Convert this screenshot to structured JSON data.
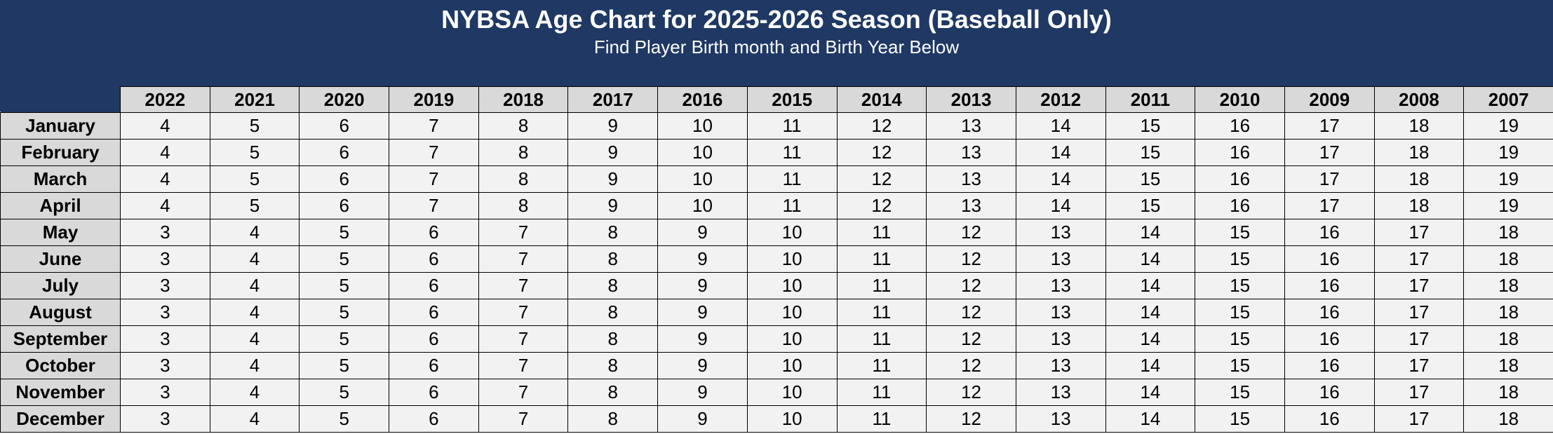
{
  "header": {
    "title": "NYBSA Age Chart for 2025-2026 Season (Baseball Only)",
    "subtitle": "Find Player Birth month and Birth Year Below"
  },
  "colors": {
    "banner": "#1f3864",
    "header_cells": "#d9d9d9",
    "data_cells": "#f2f2f2",
    "text_light": "#ffffff",
    "text_dark": "#000000"
  },
  "table": {
    "years": [
      "2022",
      "2021",
      "2020",
      "2019",
      "2018",
      "2017",
      "2016",
      "2015",
      "2014",
      "2013",
      "2012",
      "2011",
      "2010",
      "2009",
      "2008",
      "2007"
    ],
    "rows": [
      {
        "month": "January",
        "ages": [
          "4",
          "5",
          "6",
          "7",
          "8",
          "9",
          "10",
          "11",
          "12",
          "13",
          "14",
          "15",
          "16",
          "17",
          "18",
          "19"
        ]
      },
      {
        "month": "February",
        "ages": [
          "4",
          "5",
          "6",
          "7",
          "8",
          "9",
          "10",
          "11",
          "12",
          "13",
          "14",
          "15",
          "16",
          "17",
          "18",
          "19"
        ]
      },
      {
        "month": "March",
        "ages": [
          "4",
          "5",
          "6",
          "7",
          "8",
          "9",
          "10",
          "11",
          "12",
          "13",
          "14",
          "15",
          "16",
          "17",
          "18",
          "19"
        ]
      },
      {
        "month": "April",
        "ages": [
          "4",
          "5",
          "6",
          "7",
          "8",
          "9",
          "10",
          "11",
          "12",
          "13",
          "14",
          "15",
          "16",
          "17",
          "18",
          "19"
        ]
      },
      {
        "month": "May",
        "ages": [
          "3",
          "4",
          "5",
          "6",
          "7",
          "8",
          "9",
          "10",
          "11",
          "12",
          "13",
          "14",
          "15",
          "16",
          "17",
          "18"
        ]
      },
      {
        "month": "June",
        "ages": [
          "3",
          "4",
          "5",
          "6",
          "7",
          "8",
          "9",
          "10",
          "11",
          "12",
          "13",
          "14",
          "15",
          "16",
          "17",
          "18"
        ]
      },
      {
        "month": "July",
        "ages": [
          "3",
          "4",
          "5",
          "6",
          "7",
          "8",
          "9",
          "10",
          "11",
          "12",
          "13",
          "14",
          "15",
          "16",
          "17",
          "18"
        ]
      },
      {
        "month": "August",
        "ages": [
          "3",
          "4",
          "5",
          "6",
          "7",
          "8",
          "9",
          "10",
          "11",
          "12",
          "13",
          "14",
          "15",
          "16",
          "17",
          "18"
        ]
      },
      {
        "month": "September",
        "ages": [
          "3",
          "4",
          "5",
          "6",
          "7",
          "8",
          "9",
          "10",
          "11",
          "12",
          "13",
          "14",
          "15",
          "16",
          "17",
          "18"
        ]
      },
      {
        "month": "October",
        "ages": [
          "3",
          "4",
          "5",
          "6",
          "7",
          "8",
          "9",
          "10",
          "11",
          "12",
          "13",
          "14",
          "15",
          "16",
          "17",
          "18"
        ]
      },
      {
        "month": "November",
        "ages": [
          "3",
          "4",
          "5",
          "6",
          "7",
          "8",
          "9",
          "10",
          "11",
          "12",
          "13",
          "14",
          "15",
          "16",
          "17",
          "18"
        ]
      },
      {
        "month": "December",
        "ages": [
          "3",
          "4",
          "5",
          "6",
          "7",
          "8",
          "9",
          "10",
          "11",
          "12",
          "13",
          "14",
          "15",
          "16",
          "17",
          "18"
        ]
      }
    ]
  }
}
